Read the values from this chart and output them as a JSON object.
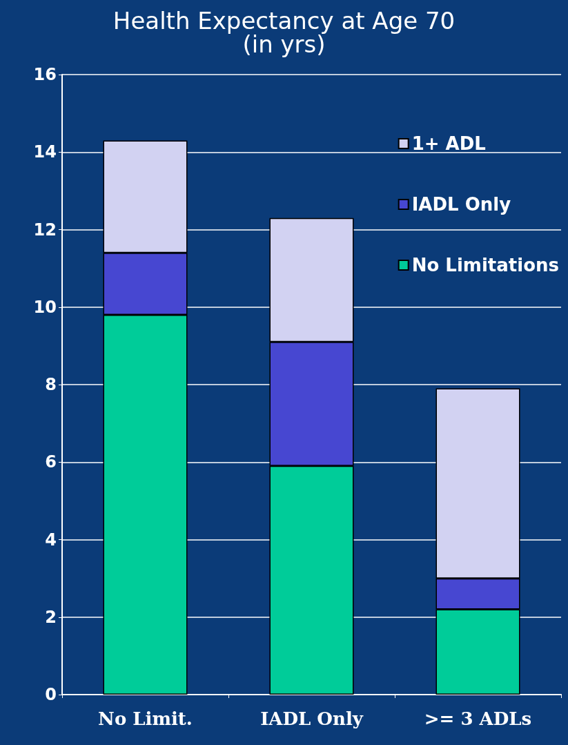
{
  "chart_data": {
    "type": "bar",
    "title": "Health Expectancy at Age 70",
    "subtitle": "(in yrs)",
    "stacked": true,
    "categories": [
      "No Limit.",
      "IADL Only",
      ">= 3 ADLs"
    ],
    "series": [
      {
        "name": "No Limitations",
        "color": "#00cc99",
        "values": [
          9.8,
          5.9,
          2.2
        ]
      },
      {
        "name": "IADL Only",
        "color": "#4747d1",
        "values": [
          1.6,
          3.2,
          0.8
        ]
      },
      {
        "name": "1+ ADL",
        "color": "#d2d2f2",
        "values": [
          2.9,
          3.2,
          4.9
        ]
      }
    ],
    "ylim": [
      0,
      16
    ],
    "yticks": [
      0,
      2,
      4,
      6,
      8,
      10,
      12,
      14,
      16
    ],
    "grid": "y",
    "legend": "top right"
  }
}
